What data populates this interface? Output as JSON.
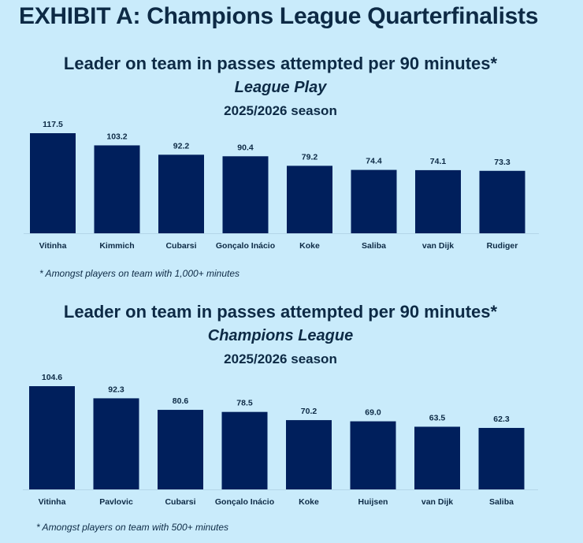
{
  "exhibit": {
    "title": "EXHIBIT A: Champions League Quarterfinalists"
  },
  "chart_data": [
    {
      "type": "bar",
      "title": "Leader on team in passes attempted per 90 minutes*",
      "subtitle": "League Play",
      "season": "2025/2026 season",
      "categories": [
        "Vitinha",
        "Kimmich",
        "Cubarsi",
        "Gonçalo Inácio",
        "Koke",
        "Saliba",
        "van Dijk",
        "Rudiger"
      ],
      "values": [
        117.5,
        103.2,
        92.2,
        90.4,
        79.2,
        74.4,
        74.1,
        73.3
      ],
      "value_labels": [
        "117.5",
        "103.2",
        "92.2",
        "90.4",
        "79.2",
        "74.4",
        "74.1",
        "73.3"
      ],
      "footnote": "* Amongst players on team with 1,000+ minutes",
      "bar_color": "#001f5c",
      "ylim": [
        0,
        117.5
      ]
    },
    {
      "type": "bar",
      "title": "Leader on team in passes attempted per 90 minutes*",
      "subtitle": "Champions League",
      "season": "2025/2026 season",
      "categories": [
        "Vitinha",
        "Pavlovic",
        "Cubarsi",
        "Gonçalo Inácio",
        "Koke",
        "Huijsen",
        "van Dijk",
        "Saliba"
      ],
      "values": [
        104.6,
        92.3,
        80.6,
        78.5,
        70.2,
        69.0,
        63.5,
        62.3
      ],
      "value_labels": [
        "104.6",
        "92.3",
        "80.6",
        "78.5",
        "70.2",
        "69.0",
        "63.5",
        "62.3"
      ],
      "footnote": "* Amongst players on team with 500+ minutes",
      "bar_color": "#001f5c",
      "ylim": [
        0,
        104.6
      ]
    }
  ]
}
